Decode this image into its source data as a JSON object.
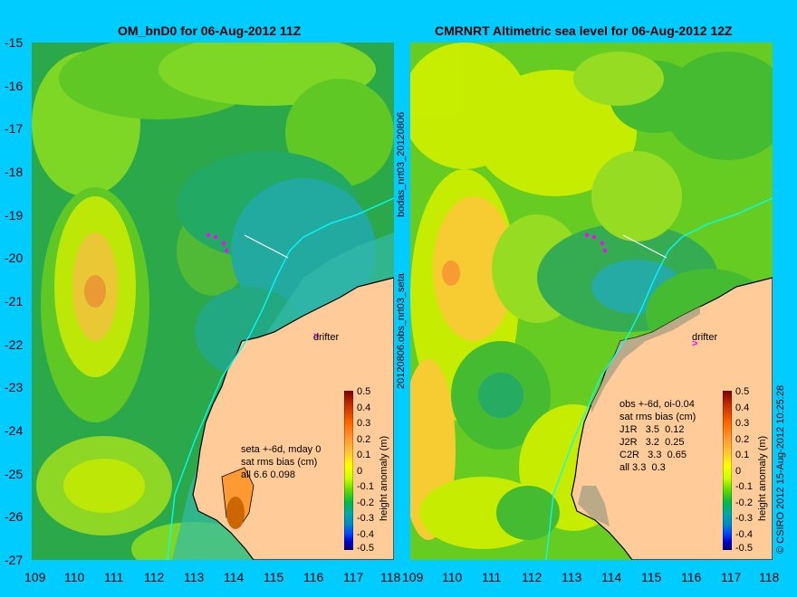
{
  "left_panel": {
    "title": "OM_bnD0 for 06-Aug-2012 11Z",
    "legend": [
      "seta +-6d, mday 0",
      "sat rms bias (cm)",
      "all 6.6 0.098"
    ],
    "drifter_label": "drifter",
    "colorbar_label": "height anomaly (m)"
  },
  "right_panel": {
    "title": "CMRNRT Altimetric sea level  for 06-Aug-2012 12Z",
    "legend": [
      "obs +-6d, oi-0.04",
      "sat rms bias (cm)",
      "J1R   3.5  0.12",
      "J2R   3.2  0.25",
      "C2R   3.3  0.65",
      "all 3.3  0.3"
    ],
    "drifter_label": "drifter",
    "colorbar_label": "height anomaly (m)"
  },
  "middle_labels": [
    "bodas_nrt03_20120806",
    "20120806.obs_nrt03_seta"
  ],
  "credit": "© CSIRO 2012   15-Aug-2012 10:25:28",
  "y_ticks": [
    "-15",
    "-16",
    "-17",
    "-18",
    "-19",
    "-20",
    "-21",
    "-22",
    "-23",
    "-24",
    "-25",
    "-26",
    "-27"
  ],
  "x_ticks": [
    "109",
    "110",
    "111",
    "112",
    "113",
    "114",
    "115",
    "116",
    "117",
    "118"
  ],
  "colorbar_ticks": [
    "0.5",
    "0.4",
    "0.3",
    "0.2",
    "0.1",
    "0",
    "-0.1",
    "-0.2",
    "-0.3",
    "-0.4",
    "-0.5"
  ],
  "colors": {
    "background": "#00ccff",
    "land": "#ffcc99",
    "drifter": "#ff00ff",
    "coastline": "#000000",
    "shelf_contour": "#00ffff"
  },
  "colorbar_colors": [
    "#800000",
    "#cc3300",
    "#ff6600",
    "#ff9933",
    "#ffcc33",
    "#ffff00",
    "#ccff00",
    "#66dd00",
    "#00bb44",
    "#00aaaa",
    "#0088cc",
    "#0044ff",
    "#0000cc",
    "#000080"
  ]
}
